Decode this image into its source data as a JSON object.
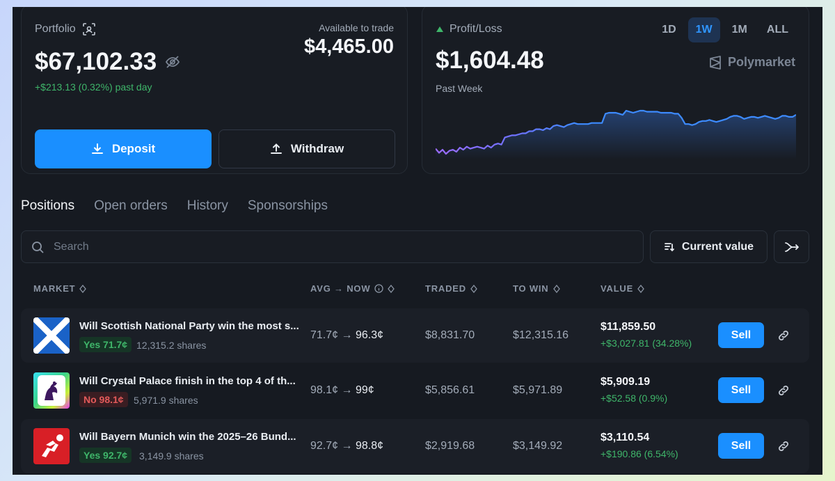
{
  "portfolio": {
    "label": "Portfolio",
    "value": "$67,102.33",
    "change": "+$213.13 (0.32%) past day",
    "available_label": "Available to trade",
    "available_value": "$4,465.00",
    "deposit_label": "Deposit",
    "withdraw_label": "Withdraw"
  },
  "profit_loss": {
    "label": "Profit/Loss",
    "value": "$1,604.48",
    "period_label": "Past Week",
    "brand": "Polymarket",
    "ranges": [
      "1D",
      "1W",
      "1M",
      "ALL"
    ],
    "active_range": "1W"
  },
  "tabs": [
    "Positions",
    "Open orders",
    "History",
    "Sponsorships"
  ],
  "active_tab": "Positions",
  "search": {
    "placeholder": "Search"
  },
  "sort": {
    "label": "Current value"
  },
  "table": {
    "headers": {
      "market": "MARKET",
      "avg_now": "AVG → NOW",
      "traded": "TRADED",
      "to_win": "TO WIN",
      "value": "VALUE"
    },
    "rows": [
      {
        "title": "Will Scottish National Party win the most s...",
        "outcome": "Yes 71.7¢",
        "outcome_type": "yes",
        "shares": "12,315.2 shares",
        "avg": "71.7¢",
        "arrow": "→",
        "now": "96.3¢",
        "traded": "$8,831.70",
        "to_win": "$12,315.16",
        "value": "$11,859.50",
        "value_change": "+$3,027.81 (34.28%)",
        "sell_label": "Sell",
        "icon": "scotland-flag-icon"
      },
      {
        "title": "Will Crystal Palace finish in the top 4 of th...",
        "outcome": "No 98.1¢",
        "outcome_type": "no",
        "shares": "5,971.9 shares",
        "avg": "98.1¢",
        "arrow": "→",
        "now": "99¢",
        "traded": "$5,856.61",
        "to_win": "$5,971.89",
        "value": "$5,909.19",
        "value_change": "+$52.58 (0.9%)",
        "sell_label": "Sell",
        "icon": "premier-league-logo-icon"
      },
      {
        "title": "Will Bayern Munich win the 2025–26 Bund...",
        "outcome": "Yes 92.7¢",
        "outcome_type": "yes",
        "shares": "3,149.9 shares",
        "avg": "92.7¢",
        "arrow": "→",
        "now": "98.8¢",
        "traded": "$2,919.68",
        "to_win": "$3,149.92",
        "value": "$3,110.54",
        "value_change": "+$190.86 (6.54%)",
        "sell_label": "Sell",
        "icon": "bundesliga-logo-icon"
      }
    ]
  },
  "chart_data": {
    "type": "area",
    "values": [
      11,
      7,
      10,
      6,
      9,
      10,
      8,
      12,
      10,
      13,
      11,
      12,
      13,
      12,
      11,
      14,
      12,
      15,
      16,
      15,
      22,
      23,
      24,
      24,
      25,
      26,
      26,
      28,
      28,
      30,
      30,
      29,
      31,
      30,
      33,
      34,
      33,
      32,
      34,
      35,
      36,
      35,
      35,
      35,
      35,
      36,
      36,
      36,
      36,
      45,
      46,
      46,
      46,
      45,
      44,
      48,
      47,
      46,
      47,
      48,
      48,
      47,
      47,
      47,
      47,
      46,
      46,
      46,
      46,
      45,
      45,
      41,
      35,
      35,
      34,
      35,
      37,
      38,
      38,
      39,
      38,
      37,
      38,
      39,
      40,
      42,
      43,
      43,
      42,
      40,
      41,
      42,
      42,
      41,
      42,
      43,
      42,
      41,
      40,
      41,
      43,
      43,
      42,
      42,
      44
    ],
    "line_color_start": "#9b6bff",
    "line_color_end": "#3d8bff"
  },
  "colors": {
    "accent": "#1a8fff",
    "positive": "#3fb66a",
    "negative": "#e35a5a"
  }
}
